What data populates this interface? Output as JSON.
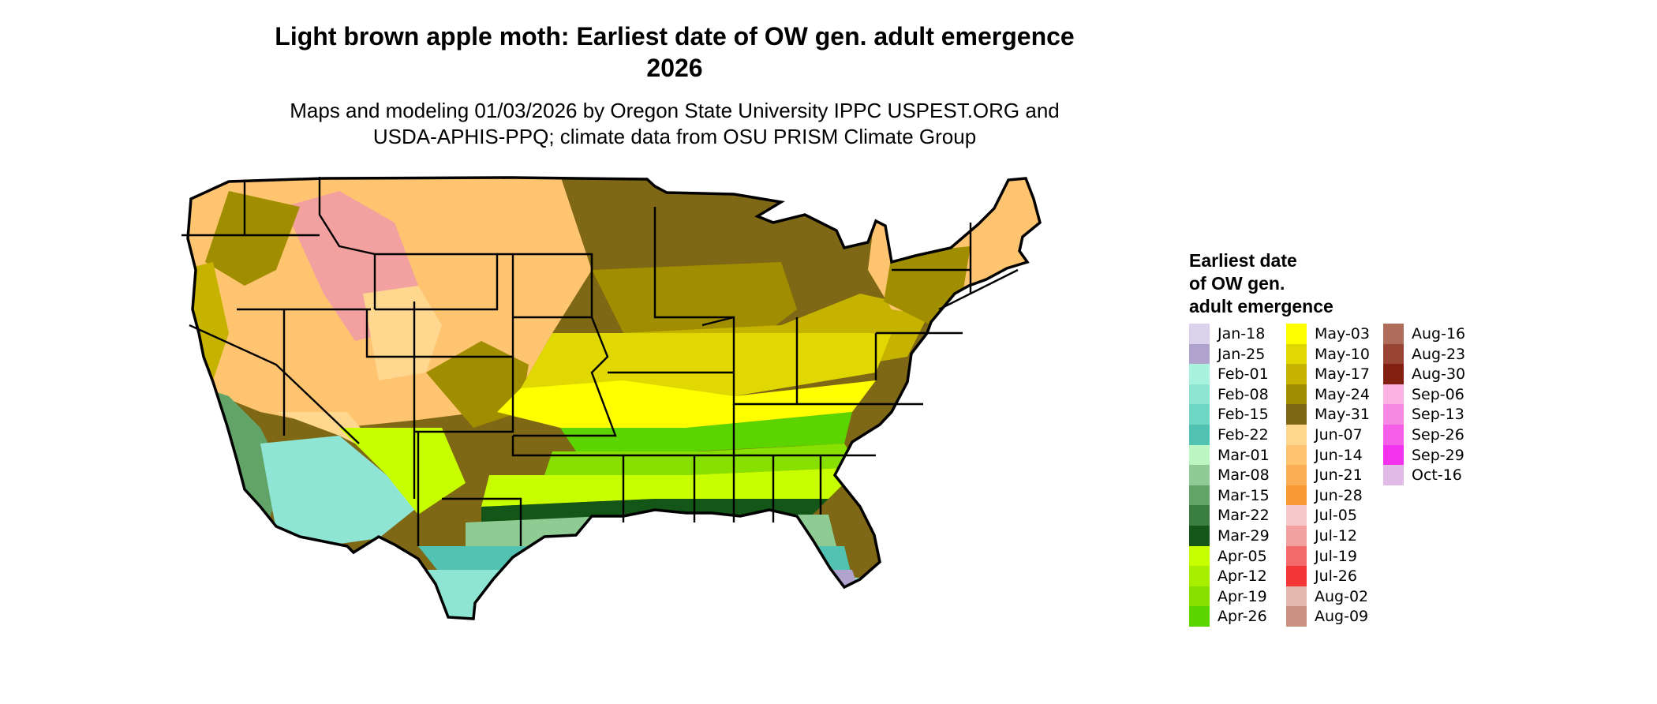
{
  "title": {
    "line1": "Light brown apple moth: Earliest date of OW gen. adult emergence",
    "line2": "2026"
  },
  "subtitle": {
    "line1": "Maps and modeling 01/03/2026 by Oregon State University IPPC USPEST.ORG and",
    "line2": "USDA-APHIS-PPQ; climate data from OSU PRISM Climate Group"
  },
  "map": {
    "icon": "usa-map-icon"
  },
  "legend": {
    "title_lines": [
      "Earliest date",
      "of OW gen.",
      "adult emergence"
    ],
    "items": [
      {
        "label": "Jan-18",
        "color": "#d9d2ea"
      },
      {
        "label": "Jan-25",
        "color": "#b0a3ce"
      },
      {
        "label": "Feb-01",
        "color": "#a9f2de"
      },
      {
        "label": "Feb-08",
        "color": "#8ee5d3"
      },
      {
        "label": "Feb-15",
        "color": "#6fd6c4"
      },
      {
        "label": "Feb-22",
        "color": "#52c3b3"
      },
      {
        "label": "Mar-01",
        "color": "#bdf6c3"
      },
      {
        "label": "Mar-08",
        "color": "#8fcc93"
      },
      {
        "label": "Mar-15",
        "color": "#62a368"
      },
      {
        "label": "Mar-22",
        "color": "#3a7d40"
      },
      {
        "label": "Mar-29",
        "color": "#145617"
      },
      {
        "label": "Apr-05",
        "color": "#c8ff00"
      },
      {
        "label": "Apr-12",
        "color": "#a7ee00"
      },
      {
        "label": "Apr-19",
        "color": "#87e000"
      },
      {
        "label": "Apr-26",
        "color": "#5cd400"
      },
      {
        "label": "May-03",
        "color": "#ffff00"
      },
      {
        "label": "May-10",
        "color": "#e0d800"
      },
      {
        "label": "May-17",
        "color": "#c5b300"
      },
      {
        "label": "May-24",
        "color": "#a08e00"
      },
      {
        "label": "May-31",
        "color": "#7e6715"
      },
      {
        "label": "Jun-07",
        "color": "#ffd78f"
      },
      {
        "label": "Jun-14",
        "color": "#ffc470"
      },
      {
        "label": "Jun-21",
        "color": "#fcae55"
      },
      {
        "label": "Jun-28",
        "color": "#f99a35"
      },
      {
        "label": "Jul-05",
        "color": "#f5c9c9"
      },
      {
        "label": "Jul-12",
        "color": "#f3a0a0"
      },
      {
        "label": "Jul-19",
        "color": "#f46a6a"
      },
      {
        "label": "Jul-26",
        "color": "#f43535"
      },
      {
        "label": "Aug-02",
        "color": "#e4b9ae"
      },
      {
        "label": "Aug-09",
        "color": "#cb9282"
      },
      {
        "label": "Aug-16",
        "color": "#b06c5a"
      },
      {
        "label": "Aug-23",
        "color": "#994535"
      },
      {
        "label": "Aug-30",
        "color": "#822011"
      },
      {
        "label": "Sep-06",
        "color": "#fcb2e2"
      },
      {
        "label": "Sep-13",
        "color": "#f788e4"
      },
      {
        "label": "Sep-26",
        "color": "#f55fe8"
      },
      {
        "label": "Sep-29",
        "color": "#f332ee"
      },
      {
        "label": "Oct-16",
        "color": "#dfbbe6"
      }
    ]
  }
}
